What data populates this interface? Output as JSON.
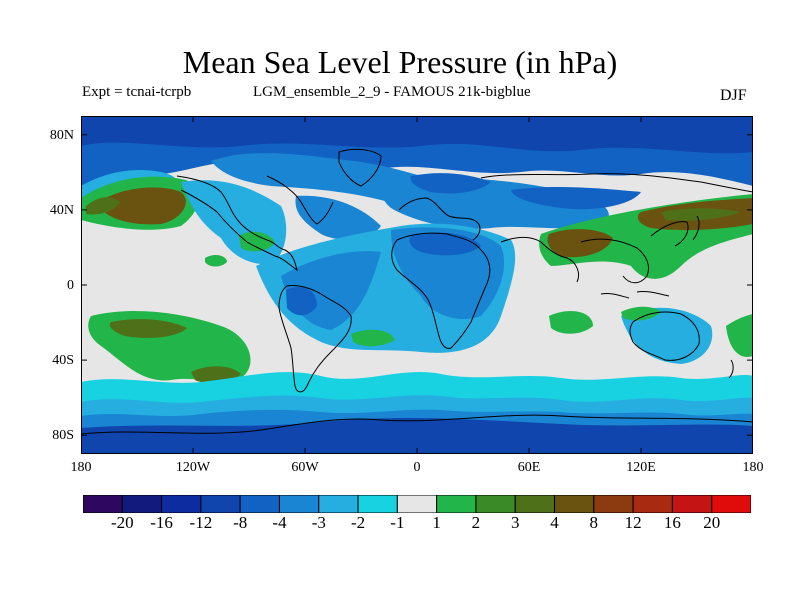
{
  "title": "Mean Sea Level Pressure (in hPa)",
  "experiment": "Expt = tcnai-tcrpb",
  "model": "LGM_ensemble_2_9 - FAMOUS 21k-bigblue",
  "season": "DJF",
  "lat_labels": [
    "80N",
    "40N",
    "0",
    "40S",
    "80S"
  ],
  "lon_labels": [
    "180",
    "120W",
    "60W",
    "0",
    "60E",
    "120E",
    "180"
  ],
  "colorbar": {
    "labels": [
      "-20",
      "-16",
      "-12",
      "-8",
      "-4",
      "-3",
      "-2",
      "-1",
      "1",
      "2",
      "3",
      "4",
      "8",
      "12",
      "16",
      "20"
    ],
    "colors": [
      "#2e0860",
      "#131a7e",
      "#0d2ca0",
      "#0f45ad",
      "#1262c4",
      "#1a85d2",
      "#26aee0",
      "#18d2e2",
      "#e6e6e6",
      "#22b64a",
      "#3a8a28",
      "#4e7018",
      "#6a5210",
      "#8c3a10",
      "#a82a10",
      "#c41414",
      "#e00c0c"
    ]
  },
  "chart_data": {
    "type": "heatmap",
    "title": "Mean Sea Level Pressure (in hPa)",
    "projection": "cylindrical equidistant",
    "xlim": [
      -180,
      180
    ],
    "ylim": [
      -90,
      90
    ],
    "x_ticks": [
      -180,
      -120,
      -60,
      0,
      60,
      120,
      180
    ],
    "y_ticks": [
      80,
      40,
      0,
      -40,
      -80
    ],
    "contour_levels": [
      -20,
      -16,
      -12,
      -8,
      -4,
      -3,
      -2,
      -1,
      1,
      2,
      3,
      4,
      8,
      12,
      16,
      20
    ],
    "regions": [
      {
        "field": "background_midlat",
        "value_range": [
          -1,
          1
        ],
        "lon": [
          -180,
          180
        ],
        "lat": [
          -60,
          60
        ]
      },
      {
        "field": "southern_ocean_band",
        "value_range": [
          -3,
          -1
        ],
        "lon": [
          -180,
          180
        ],
        "lat": [
          -70,
          -55
        ]
      },
      {
        "field": "antarctic",
        "value_range": [
          -8,
          -4
        ],
        "lon": [
          -180,
          180
        ],
        "lat": [
          -90,
          -70
        ]
      },
      {
        "field": "arctic",
        "value_range": [
          -8,
          -4
        ],
        "lon": [
          -180,
          180
        ],
        "lat": [
          60,
          90
        ]
      },
      {
        "field": "north_pacific_high",
        "value_range": [
          4,
          8
        ],
        "lon": [
          -180,
          -130
        ],
        "lat": [
          30,
          60
        ]
      },
      {
        "field": "asia_high",
        "value_range": [
          4,
          8
        ],
        "lon": [
          70,
          180
        ],
        "lat": [
          20,
          50
        ]
      },
      {
        "field": "south_pacific_high",
        "value_range": [
          2,
          4
        ],
        "lon": [
          -170,
          -110
        ],
        "lat": [
          -55,
          -20
        ]
      },
      {
        "field": "atlantic_africa_low",
        "value_range": [
          -4,
          -2
        ],
        "lon": [
          -60,
          40
        ],
        "lat": [
          -30,
          30
        ]
      }
    ]
  }
}
